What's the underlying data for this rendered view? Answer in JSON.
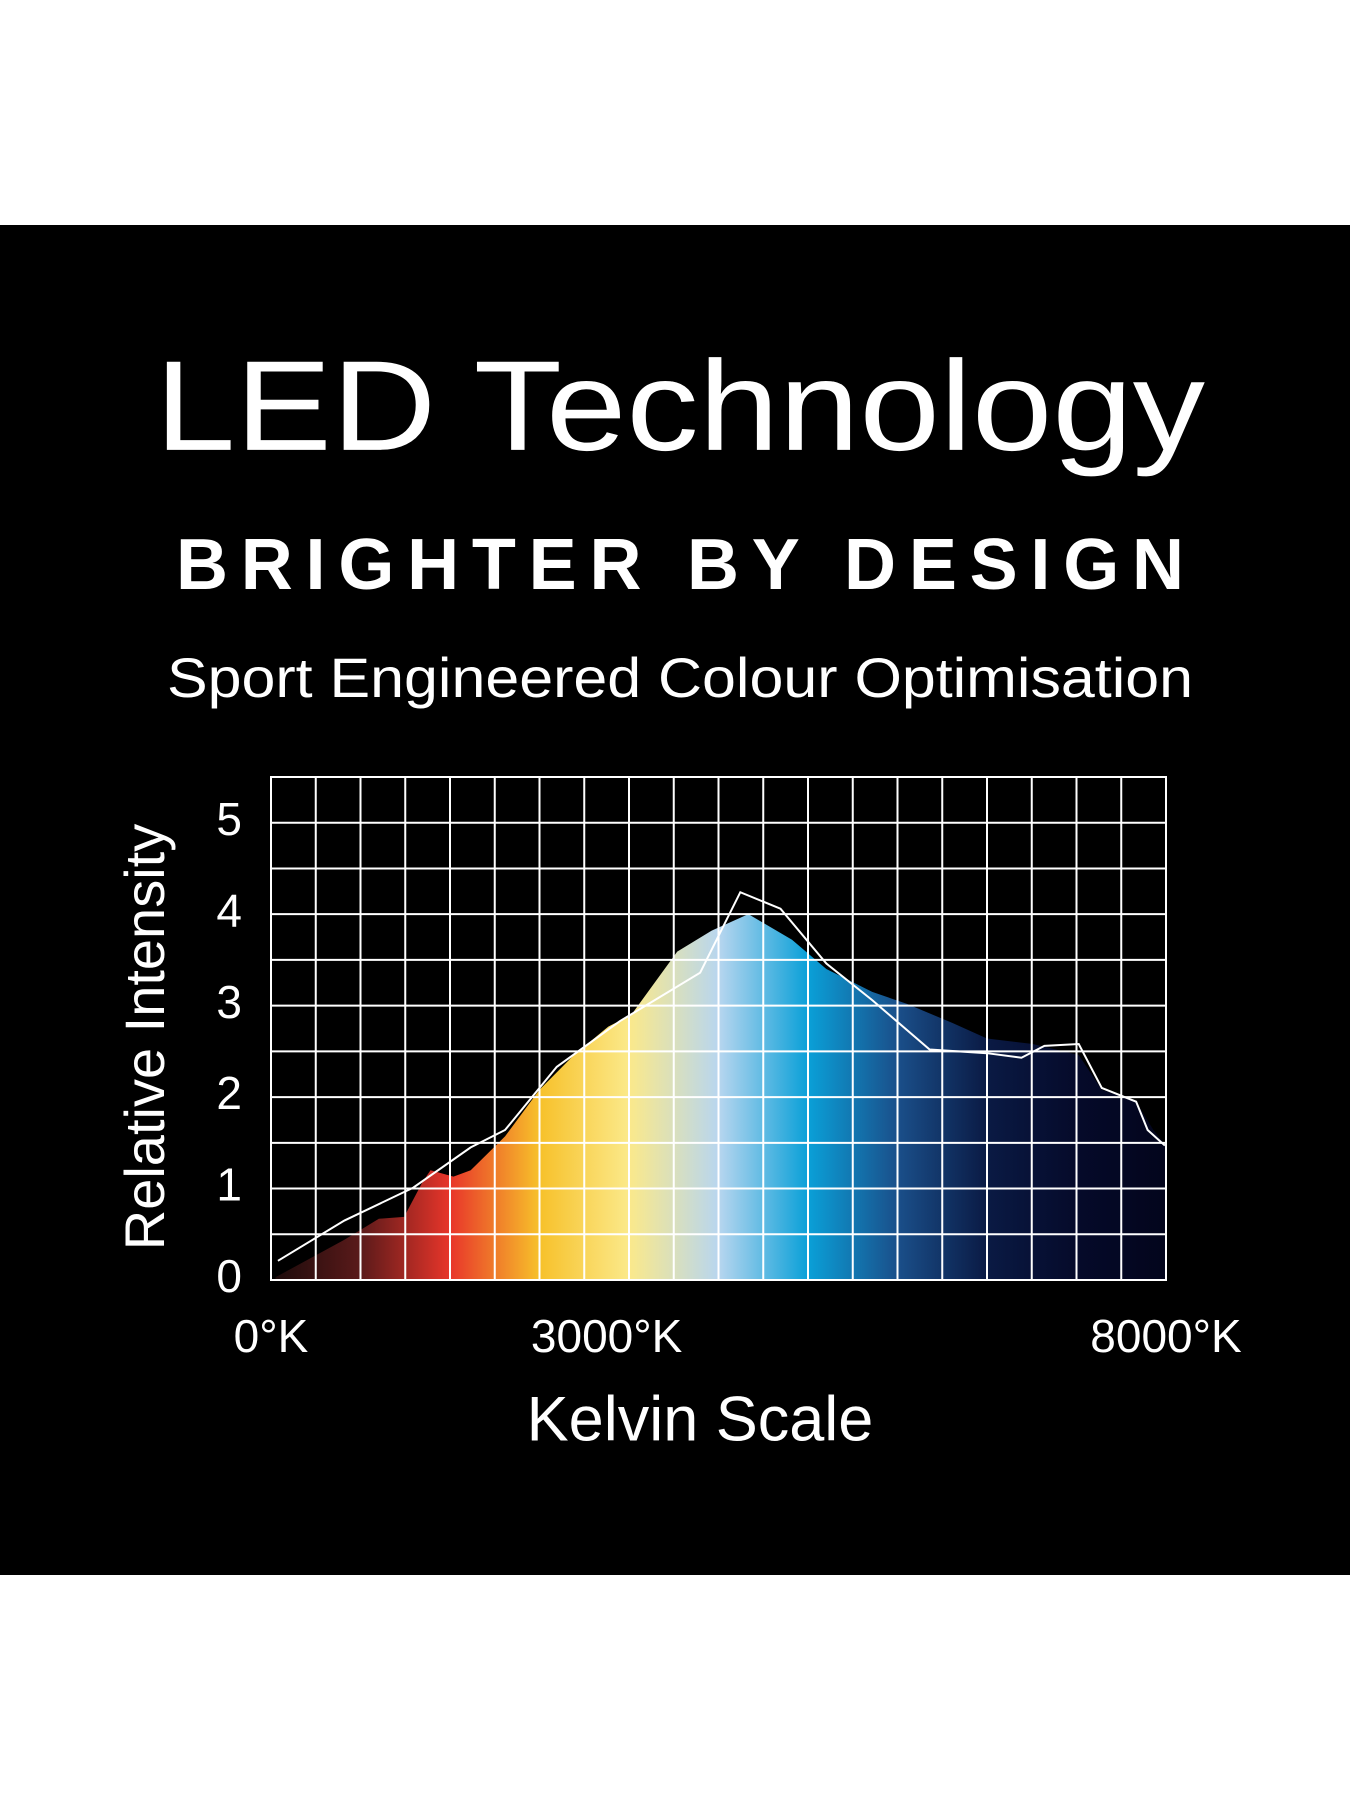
{
  "chart_data": {
    "type": "area",
    "title": "LED Technology",
    "tagline": "BRIGHTER BY DESIGN",
    "subtitle": "Sport Engineered Colour Optimisation",
    "xlabel": "Kelvin Scale",
    "ylabel": "Relative Intensity",
    "xlim": [
      0,
      8000
    ],
    "ylim": [
      0,
      5.5
    ],
    "xticks": [
      {
        "value": 0,
        "label": "0°K"
      },
      {
        "value": 3000,
        "label": "3000°K"
      },
      {
        "value": 8000,
        "label": "8000°K"
      }
    ],
    "yticks": [
      0,
      1,
      2,
      3,
      4,
      5
    ],
    "x_gridlines": [
      0,
      400,
      800,
      1200,
      1600,
      2000,
      2400,
      2800,
      3200,
      3600,
      4000,
      4400,
      4800,
      5200,
      5600,
      6000,
      6400,
      6800,
      7200,
      7600,
      8000
    ],
    "y_gridlines": [
      0,
      0.5,
      1,
      1.5,
      2,
      2.5,
      3,
      3.5,
      4,
      4.5,
      5,
      5.5
    ],
    "grid": true,
    "series": [
      {
        "type": "area",
        "colors": [
          "#1a0a0a",
          "#5a1a1a",
          "#e8352a",
          "#f7c12a",
          "#fbe98a",
          "#b8d6ef",
          "#0aa0d8",
          "#1a4f8a",
          "#0a1a44",
          "#050a2a",
          "#03051c"
        ],
        "x": [
          40,
          656,
          964,
          1190,
          1354,
          1426,
          1631,
          1785,
          2092,
          2400,
          2708,
          3015,
          3221,
          3631,
          3939,
          4267,
          4657,
          4964,
          5374,
          5682,
          6092,
          6400,
          6810,
          7220,
          7426,
          7733,
          7887,
          8000
        ],
        "values": [
          0.03,
          0.44,
          0.67,
          0.69,
          1.07,
          1.2,
          1.13,
          1.2,
          1.57,
          2.08,
          2.46,
          2.77,
          2.9,
          3.59,
          3.82,
          4.0,
          3.72,
          3.4,
          3.15,
          3.02,
          2.81,
          2.64,
          2.58,
          2.46,
          2.08,
          1.95,
          1.64,
          1.47
        ]
      },
      {
        "type": "line",
        "color": "#ffffff",
        "x": [
          62,
          656,
          1272,
          1785,
          2092,
          2554,
          3118,
          3836,
          4195,
          4554,
          4964,
          5374,
          5887,
          6400,
          6708,
          6913,
          7220,
          7426,
          7733,
          7836,
          7990
        ],
        "values": [
          0.21,
          0.65,
          1.01,
          1.45,
          1.64,
          2.33,
          2.83,
          3.36,
          4.24,
          4.06,
          3.46,
          3.06,
          2.52,
          2.48,
          2.43,
          2.56,
          2.58,
          2.1,
          1.95,
          1.64,
          1.47
        ]
      }
    ]
  }
}
